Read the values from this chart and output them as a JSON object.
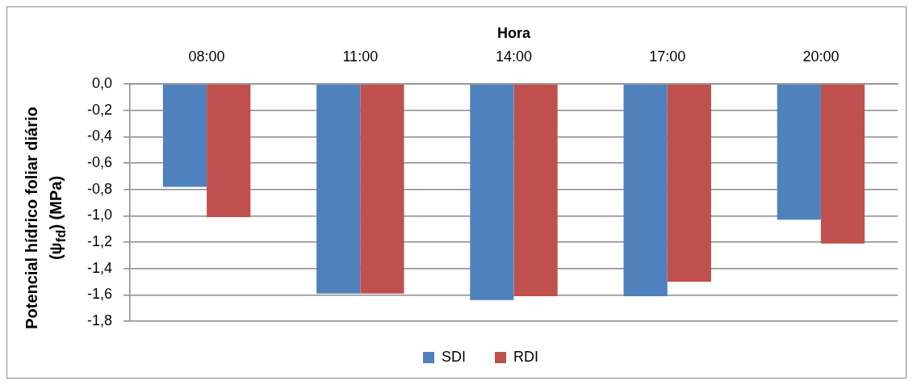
{
  "chart_data": {
    "type": "bar",
    "xlabel": "Hora",
    "ylabel": "Potencial hídrico foliar diário (ψ$_{fd}$) (MPa)",
    "categories": [
      "08:00",
      "11:00",
      "14:00",
      "17:00",
      "20:00"
    ],
    "series": [
      {
        "name": "SDI",
        "color": "#4f81bd",
        "values": [
          -0.78,
          -1.59,
          -1.64,
          -1.61,
          -1.03
        ]
      },
      {
        "name": "RDI",
        "color": "#c0504d",
        "values": [
          -1.01,
          -1.59,
          -1.61,
          -1.5,
          -1.21
        ]
      }
    ],
    "ylim": [
      -1.8,
      0
    ],
    "yticks": [
      {
        "value": 0,
        "label": "0,0"
      },
      {
        "value": -0.2,
        "label": "-0,2"
      },
      {
        "value": -0.4,
        "label": "-0,4"
      },
      {
        "value": -0.6,
        "label": "-0,6"
      },
      {
        "value": -0.8,
        "label": "-0,8"
      },
      {
        "value": -1.0,
        "label": "-1,0"
      },
      {
        "value": -1.2,
        "label": "-1,2"
      },
      {
        "value": -1.4,
        "label": "-1,4"
      },
      {
        "value": -1.6,
        "label": "-1,6"
      },
      {
        "value": -1.8,
        "label": "-1,8"
      }
    ],
    "grid": "y",
    "legend": "bottom"
  }
}
